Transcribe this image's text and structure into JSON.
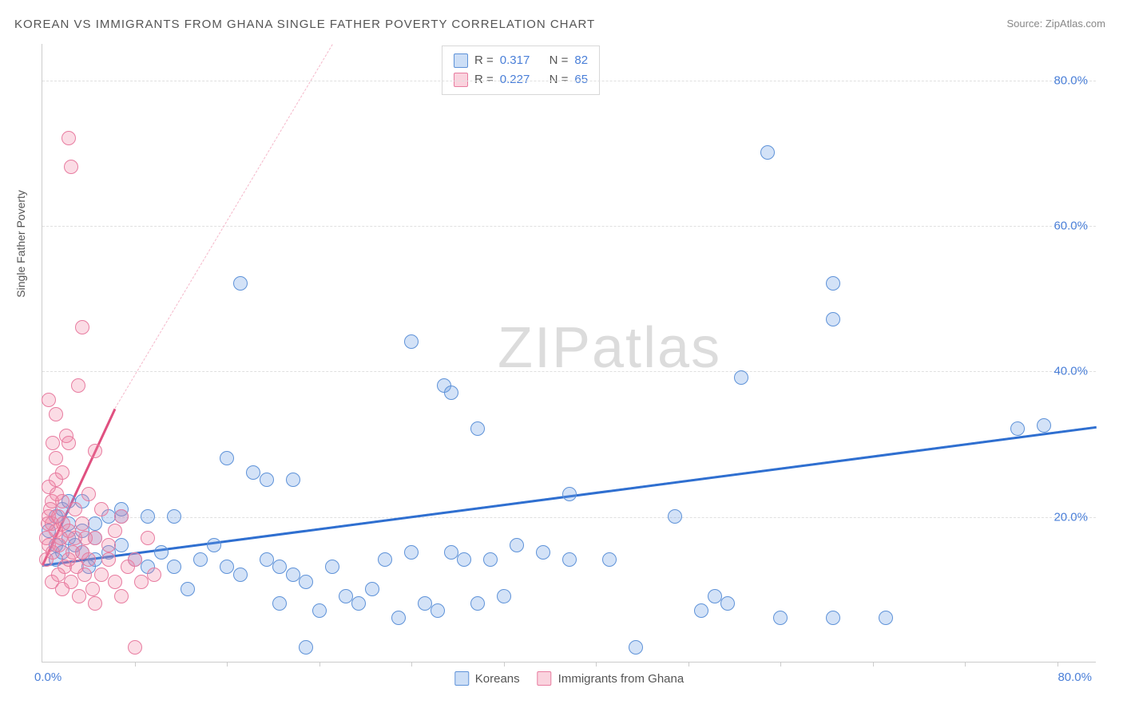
{
  "title": "KOREAN VS IMMIGRANTS FROM GHANA SINGLE FATHER POVERTY CORRELATION CHART",
  "source_label": "Source: ",
  "source_name": "ZipAtlas.com",
  "y_axis_label": "Single Father Poverty",
  "watermark": "ZIPatlas",
  "chart": {
    "type": "scatter",
    "xlim": [
      0,
      80
    ],
    "ylim": [
      0,
      85
    ],
    "y_ticks": [
      20,
      40,
      60,
      80
    ],
    "y_tick_labels": [
      "20.0%",
      "40.0%",
      "60.0%",
      "80.0%"
    ],
    "x_tick_origin": "0.0%",
    "x_tick_end": "80.0%",
    "x_minor_ticks": [
      7,
      14,
      21,
      28,
      35,
      42,
      49,
      56,
      63,
      70,
      77
    ],
    "background_color": "#ffffff",
    "grid_color": "#e0e0e0",
    "axis_color": "#cccccc",
    "tick_label_color": "#4a7fd8",
    "series": [
      {
        "name": "Koreans",
        "color_fill": "rgba(110,160,230,0.30)",
        "color_stroke": "#5e92d8",
        "marker_size": 18,
        "R": "0.317",
        "N": "82",
        "trend": {
          "x1": 0,
          "y1": 13.5,
          "x2": 80,
          "y2": 32.5,
          "color": "#2f6fd0",
          "width": 2.5,
          "dash": false
        },
        "trend_ext": {
          "x1": 0,
          "y1": 13.5,
          "x2": 80,
          "y2": 32.5,
          "color": "#9fc0ea",
          "dash": true
        },
        "points": [
          [
            0.5,
            18
          ],
          [
            1,
            16
          ],
          [
            1,
            20
          ],
          [
            1.5,
            21
          ],
          [
            1.5,
            15
          ],
          [
            2,
            22
          ],
          [
            2,
            17
          ],
          [
            2.5,
            16
          ],
          [
            3,
            15
          ],
          [
            3,
            18
          ],
          [
            3.5,
            13
          ],
          [
            4,
            14
          ],
          [
            4,
            17
          ],
          [
            5,
            15
          ],
          [
            5,
            20
          ],
          [
            6,
            16
          ],
          [
            6,
            20
          ],
          [
            7,
            14
          ],
          [
            8,
            13
          ],
          [
            8,
            20
          ],
          [
            9,
            15
          ],
          [
            10,
            13
          ],
          [
            10,
            20
          ],
          [
            11,
            10
          ],
          [
            12,
            14
          ],
          [
            13,
            16
          ],
          [
            14,
            13
          ],
          [
            14,
            28
          ],
          [
            15,
            12
          ],
          [
            15,
            52
          ],
          [
            16,
            26
          ],
          [
            17,
            14
          ],
          [
            17,
            25
          ],
          [
            18,
            13
          ],
          [
            18,
            8
          ],
          [
            19,
            12
          ],
          [
            19,
            25
          ],
          [
            20,
            11
          ],
          [
            20,
            2
          ],
          [
            21,
            7
          ],
          [
            22,
            13
          ],
          [
            23,
            9
          ],
          [
            24,
            8
          ],
          [
            25,
            10
          ],
          [
            26,
            14
          ],
          [
            27,
            6
          ],
          [
            28,
            15
          ],
          [
            28,
            44
          ],
          [
            29,
            8
          ],
          [
            30,
            7
          ],
          [
            30.5,
            38
          ],
          [
            31,
            15
          ],
          [
            31,
            37
          ],
          [
            32,
            14
          ],
          [
            33,
            8
          ],
          [
            33,
            32
          ],
          [
            34,
            14
          ],
          [
            35,
            9
          ],
          [
            36,
            16
          ],
          [
            38,
            15
          ],
          [
            40,
            23
          ],
          [
            40,
            14
          ],
          [
            43,
            14
          ],
          [
            45,
            2
          ],
          [
            48,
            20
          ],
          [
            50,
            7
          ],
          [
            51,
            9
          ],
          [
            52,
            8
          ],
          [
            53,
            39
          ],
          [
            55,
            70
          ],
          [
            56,
            6
          ],
          [
            60,
            6
          ],
          [
            60,
            52
          ],
          [
            60,
            47
          ],
          [
            64,
            6
          ],
          [
            74,
            32
          ],
          [
            76,
            32.5
          ],
          [
            2,
            19
          ],
          [
            4,
            19
          ],
          [
            6,
            21
          ],
          [
            1,
            14
          ],
          [
            3,
            22
          ]
        ]
      },
      {
        "name": "Immigrants from Ghana",
        "color_fill": "rgba(240,130,160,0.28)",
        "color_stroke": "#e87ca0",
        "marker_size": 18,
        "R": "0.227",
        "N": "65",
        "trend": {
          "x1": 0,
          "y1": 13.5,
          "x2": 5.5,
          "y2": 35,
          "color": "#e05080",
          "width": 2.5,
          "dash": false
        },
        "trend_ext": {
          "x1": 5.5,
          "y1": 35,
          "x2": 22,
          "y2": 85,
          "color": "#f5b8ca",
          "dash": true
        },
        "points": [
          [
            0.3,
            14
          ],
          [
            0.3,
            17
          ],
          [
            0.5,
            20
          ],
          [
            0.5,
            16
          ],
          [
            0.5,
            24
          ],
          [
            0.5,
            36
          ],
          [
            0.7,
            11
          ],
          [
            0.7,
            22
          ],
          [
            0.7,
            19
          ],
          [
            0.8,
            15
          ],
          [
            0.8,
            30
          ],
          [
            1,
            18
          ],
          [
            1,
            25
          ],
          [
            1,
            34
          ],
          [
            1,
            28
          ],
          [
            1.2,
            12
          ],
          [
            1.2,
            20
          ],
          [
            1.3,
            16
          ],
          [
            1.5,
            22
          ],
          [
            1.5,
            10
          ],
          [
            1.5,
            26
          ],
          [
            1.7,
            13
          ],
          [
            1.8,
            31
          ],
          [
            2,
            14
          ],
          [
            2,
            18
          ],
          [
            2,
            30
          ],
          [
            2,
            72
          ],
          [
            2.2,
            68
          ],
          [
            2.2,
            11
          ],
          [
            2.5,
            17
          ],
          [
            2.5,
            21
          ],
          [
            2.7,
            38
          ],
          [
            2.8,
            9
          ],
          [
            3,
            15
          ],
          [
            3,
            46
          ],
          [
            3,
            19
          ],
          [
            3.2,
            12
          ],
          [
            3.5,
            23
          ],
          [
            3.5,
            14
          ],
          [
            3.8,
            10
          ],
          [
            4,
            17
          ],
          [
            4,
            8
          ],
          [
            4,
            29
          ],
          [
            4.5,
            12
          ],
          [
            4.5,
            21
          ],
          [
            5,
            14
          ],
          [
            5,
            16
          ],
          [
            5.5,
            18
          ],
          [
            5.5,
            11
          ],
          [
            6,
            9
          ],
          [
            6,
            20
          ],
          [
            6.5,
            13
          ],
          [
            7,
            14
          ],
          [
            7,
            2
          ],
          [
            7.5,
            11
          ],
          [
            8,
            17
          ],
          [
            8.5,
            12
          ],
          [
            0.4,
            19
          ],
          [
            0.6,
            21
          ],
          [
            1.1,
            23
          ],
          [
            1.4,
            17
          ],
          [
            1.6,
            19
          ],
          [
            2.3,
            15
          ],
          [
            2.6,
            13
          ],
          [
            3.3,
            17
          ]
        ]
      }
    ]
  },
  "legend_top": {
    "rows": [
      {
        "swatch": "blue",
        "r_label": "R =",
        "r_val": "0.317",
        "n_label": "N =",
        "n_val": "82"
      },
      {
        "swatch": "pink",
        "r_label": "R =",
        "r_val": "0.227",
        "n_label": "N =",
        "n_val": "65"
      }
    ]
  },
  "legend_bottom": [
    {
      "swatch": "blue",
      "label": "Koreans"
    },
    {
      "swatch": "pink",
      "label": "Immigrants from Ghana"
    }
  ]
}
